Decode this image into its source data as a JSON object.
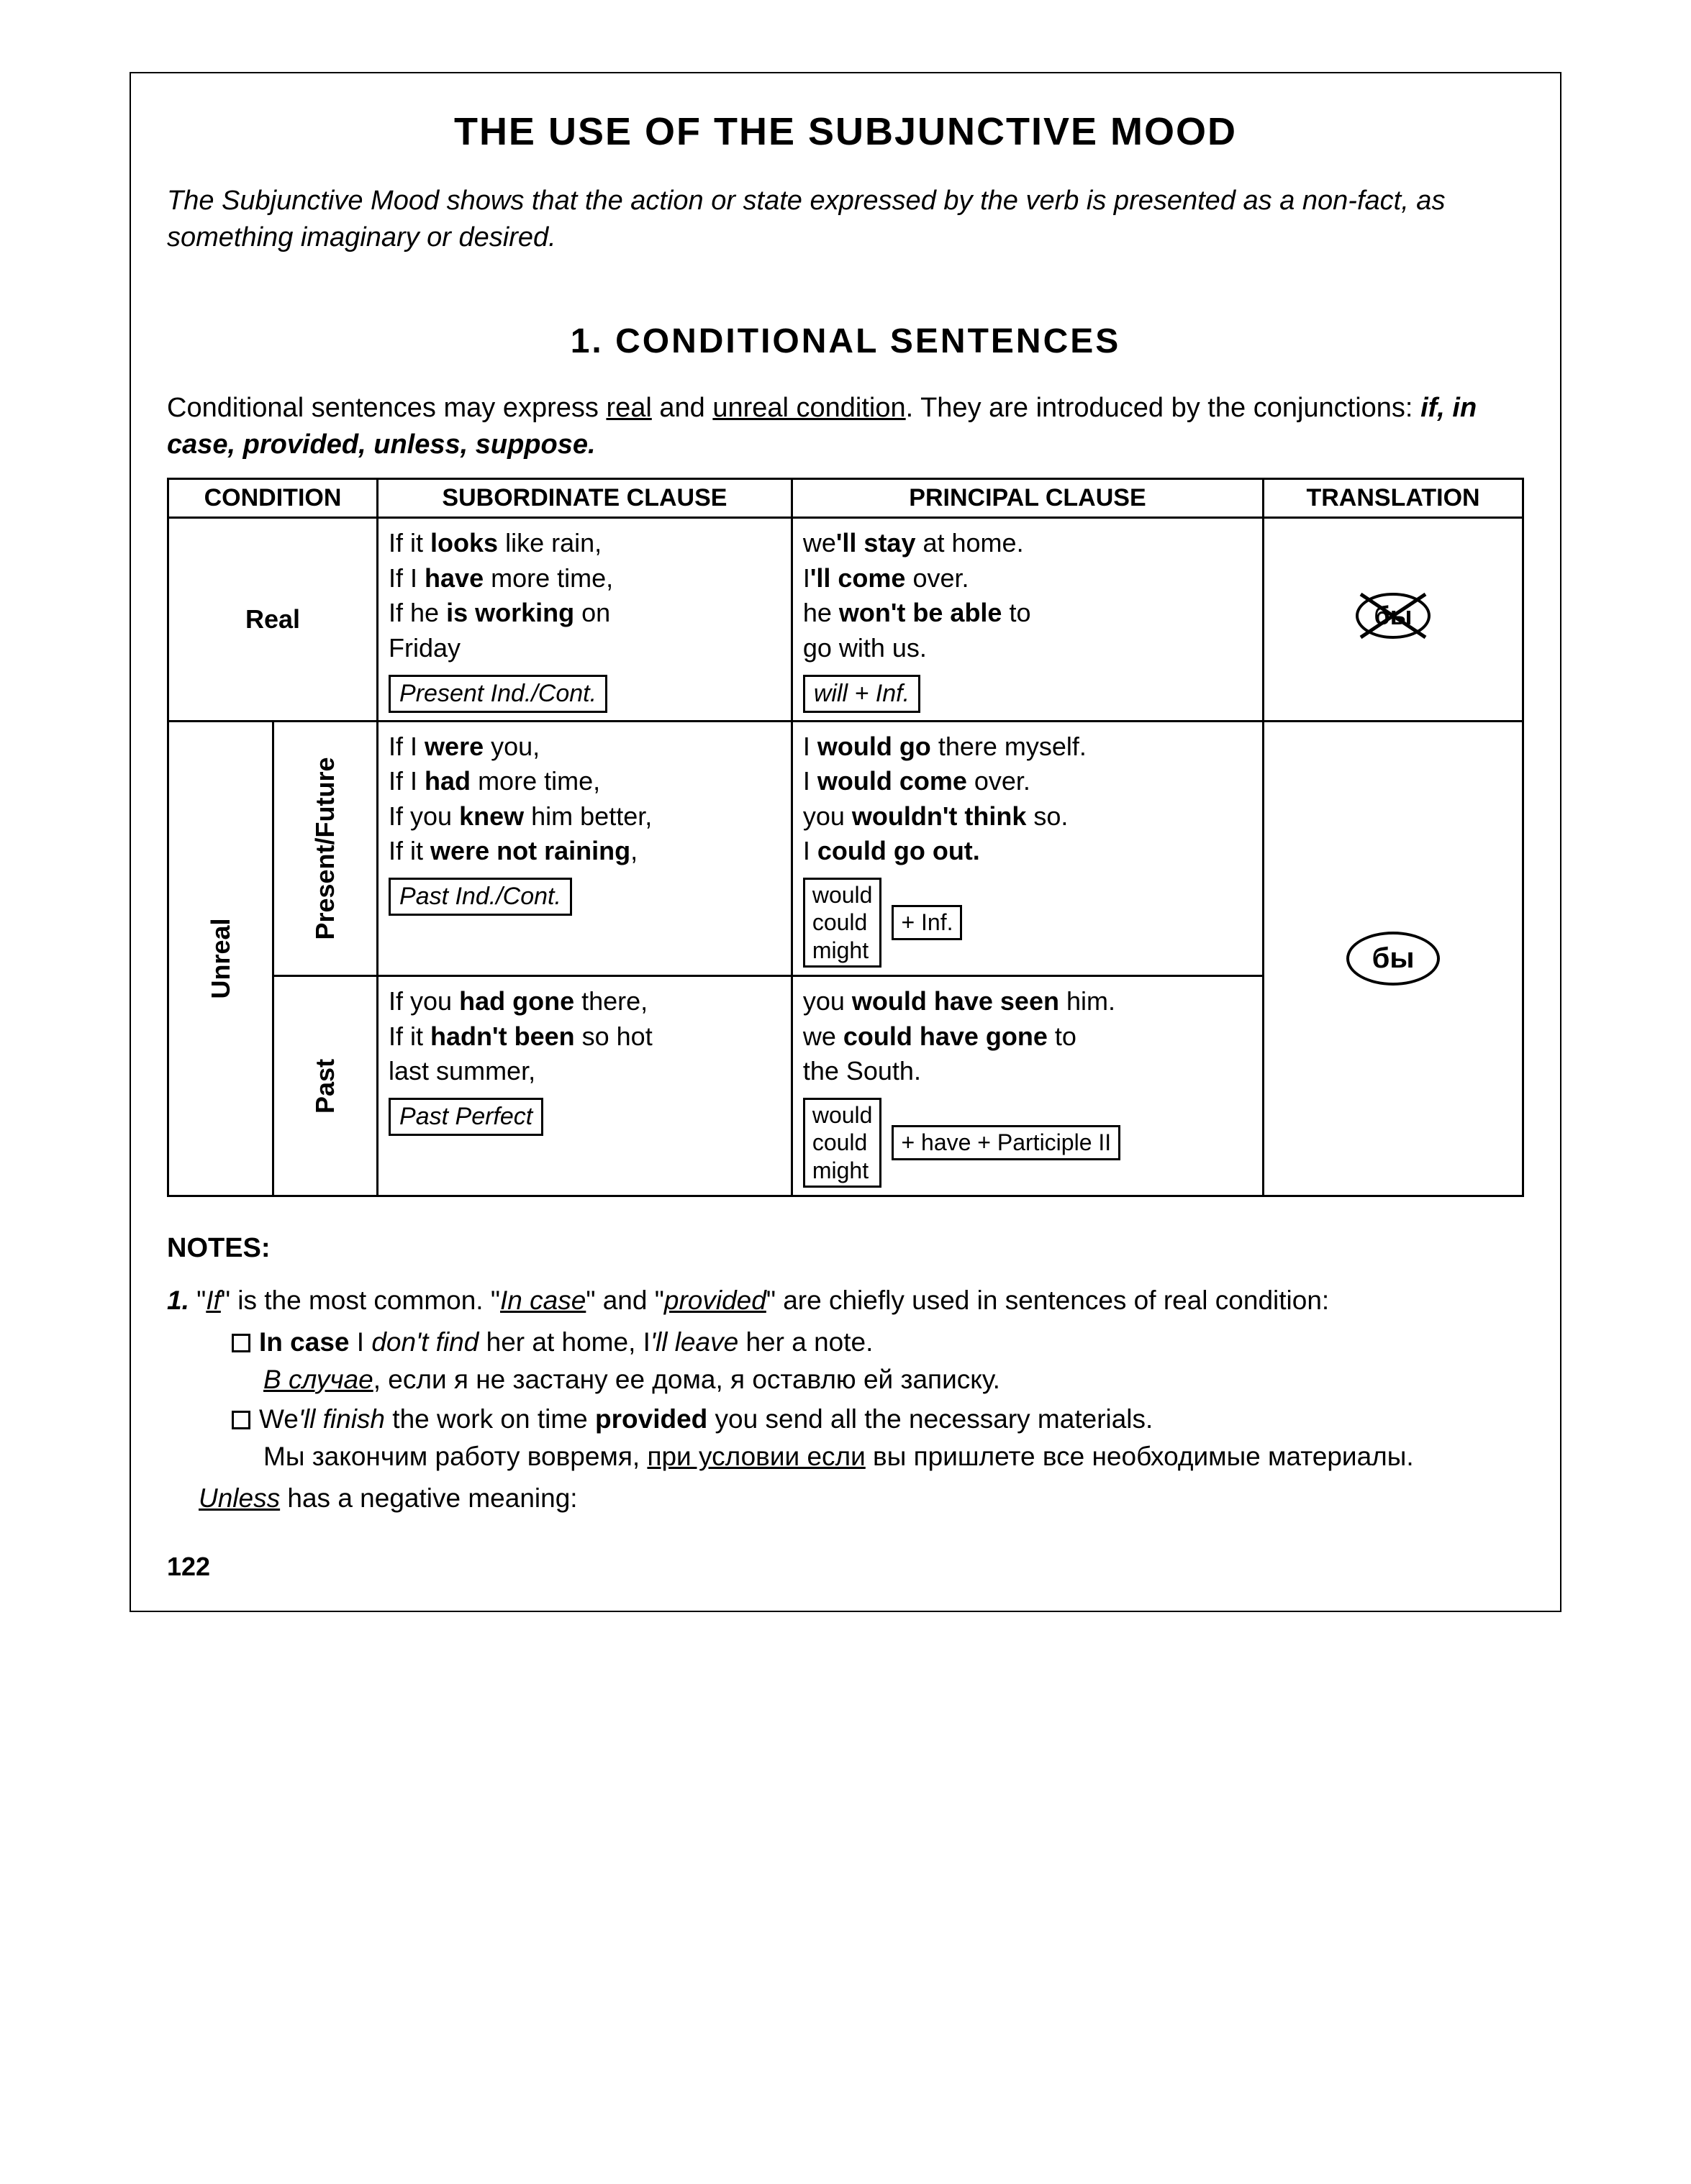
{
  "title": "THE USE OF THE SUBJUNCTIVE MOOD",
  "intro": "The Subjunctive Mood shows that the action or state expressed by the verb is presented as a non-fact, as something imaginary or desired.",
  "section_title": "1.  CONDITIONAL  SENTENCES",
  "para_pre": "Conditional sentences may express ",
  "para_u1": "real",
  "para_mid": " and ",
  "para_u2": "unreal condition",
  "para_post": ". They are introduced by the conjunctions: ",
  "conjunctions": "if, in case, provided, unless, suppose.",
  "headers": {
    "c1": "CONDITION",
    "c2": "SUBORDINATE CLAUSE",
    "c3": "PRINCIPAL CLAUSE",
    "c4": "TRANSLATION"
  },
  "row_real": {
    "label": "Real",
    "sub_lines": [
      "If it <b>looks</b> like rain,",
      "If I <b>have</b> more time,",
      "If he <b>is working</b> on",
      "Friday"
    ],
    "sub_box": "Present Ind./Cont.",
    "prin_lines": [
      "we<b>'ll stay</b> at home.",
      "I<b>'ll come</b> over.",
      "he <b>won't be able</b> to",
      "go with us."
    ],
    "prin_box": "will + Inf."
  },
  "row_unreal_label": "Unreal",
  "row_pf": {
    "label": "Present/Future",
    "sub_lines": [
      "If I <b>were</b> you,",
      "If I <b>had</b> more time,",
      "If you <b>knew</b> him better,",
      "If it <b>were not raining</b>,"
    ],
    "sub_box": "Past Ind./Cont.",
    "prin_lines": [
      "I <b>would go</b> there myself.",
      "I <b>would come</b> over.",
      "you <b>wouldn't think</b> so.",
      "I <b>could go out.</b>"
    ],
    "formula_stack": [
      "would",
      "could",
      "might"
    ],
    "formula_right": "+ Inf."
  },
  "row_past": {
    "label": "Past",
    "sub_lines": [
      "If you <b>had gone</b> there,",
      "If it <b>hadn't been</b> so hot",
      "last summer,"
    ],
    "sub_box": "Past Perfect",
    "prin_lines": [
      "you <b>would have seen</b> him.",
      "we <b>could have gone</b> to",
      "the South."
    ],
    "formula_stack": [
      "would",
      "could",
      "might"
    ],
    "formula_right": "+ have + Participle II"
  },
  "trans_word": "бы",
  "notes_heading": "NOTES:",
  "note1": {
    "num": "1.",
    "pre1": " \"",
    "if": "If",
    "post1": "\" is the most common. ",
    "pre2": "\"",
    "incase": "In case",
    "post2": "\" and \"",
    "provided": "provided",
    "post3": "\" are chiefly used in sentences of real condition:"
  },
  "note1_items": [
    {
      "line1_html": "<b>In case</b> I <i>don't find</i> her at home, I<i>'ll leave</i> her a note.",
      "line2_html": "<span class='ul'><i>В случае</i></span>, если я не застану ее дома, я оставлю ей записку."
    },
    {
      "line1_html": "We<i>'ll finish</i> the work on time <b>provided</b> you send all the necessary materials.",
      "line2_html": "Мы закончим работу вовремя, <span class='ul'>при условии если</span> вы пришлете все необходимые материалы."
    }
  ],
  "unless_line_html": "<span class='ul'><i>Unless</i></span> has a negative meaning:",
  "page_number": "122"
}
